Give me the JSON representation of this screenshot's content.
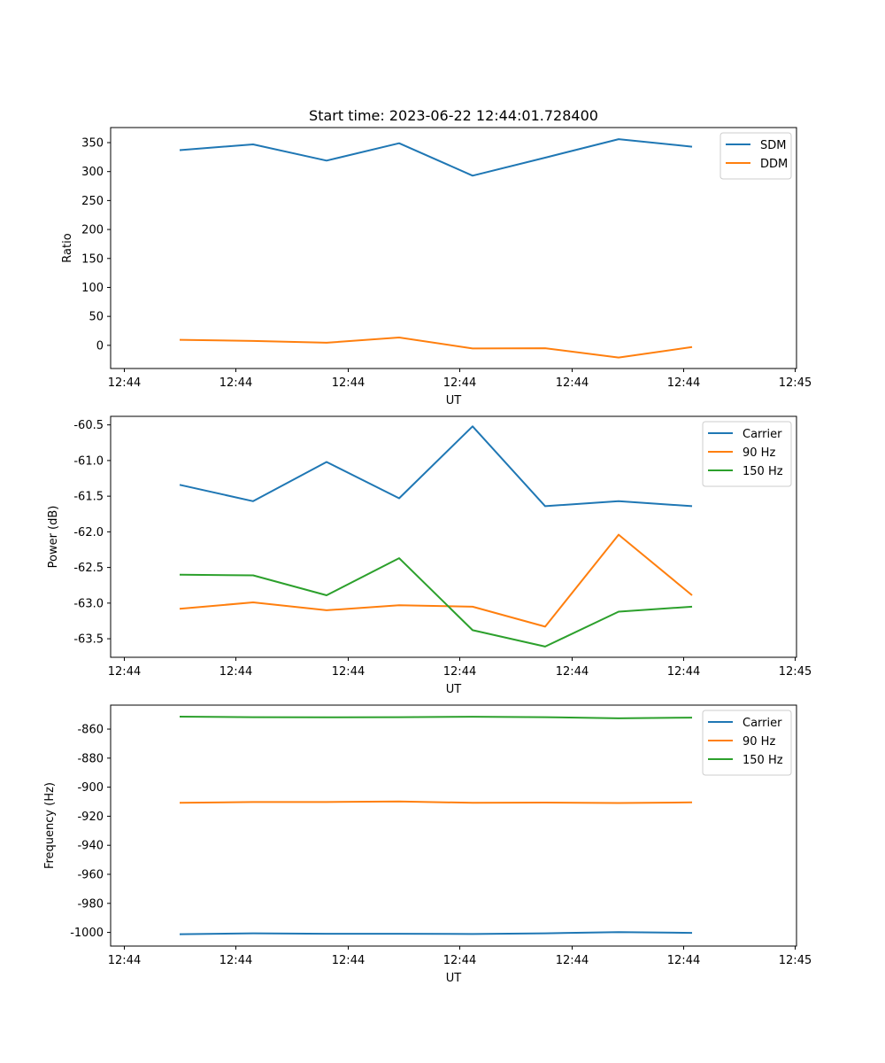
{
  "title": "Start time: 2023-06-22 12:44:01.728400",
  "chart_data": [
    {
      "type": "line",
      "xlabel": "UT",
      "ylabel": "Ratio",
      "x_ticks": [
        "12:44",
        "12:44",
        "12:44",
        "12:44",
        "12:44",
        "12:44",
        "12:45"
      ],
      "y_ticks": [
        "350",
        "300",
        "250",
        "200",
        "150",
        "100",
        "50",
        "0"
      ],
      "ylim": [
        -40,
        376
      ],
      "legend_position": "top-right",
      "series": [
        {
          "name": "SDM",
          "color": "#1f77b4",
          "values": [
            337,
            347,
            319,
            349,
            293,
            324,
            356,
            343
          ]
        },
        {
          "name": "DDM",
          "color": "#ff7f0e",
          "values": [
            9.5,
            7.5,
            4.5,
            13.5,
            -5.5,
            -5,
            -21,
            -3
          ]
        }
      ]
    },
    {
      "type": "line",
      "xlabel": "UT",
      "ylabel": "Power (dB)",
      "x_ticks": [
        "12:44",
        "12:44",
        "12:44",
        "12:44",
        "12:44",
        "12:44",
        "12:45"
      ],
      "y_ticks": [
        "-60.5",
        "-61.0",
        "-61.5",
        "-62.0",
        "-62.5",
        "-63.0",
        "-63.5"
      ],
      "ylim": [
        -63.76,
        -60.38
      ],
      "legend_position": "top-right",
      "series": [
        {
          "name": "Carrier",
          "color": "#1f77b4",
          "values": [
            -61.34,
            -61.57,
            -61.02,
            -61.53,
            -60.52,
            -61.64,
            -61.57,
            -61.64
          ]
        },
        {
          "name": "90 Hz",
          "color": "#ff7f0e",
          "values": [
            -63.08,
            -62.99,
            -63.1,
            -63.03,
            -63.05,
            -63.33,
            -62.04,
            -62.89
          ]
        },
        {
          "name": "150 Hz",
          "color": "#2ca02c",
          "values": [
            -62.6,
            -62.61,
            -62.89,
            -62.37,
            -63.38,
            -63.61,
            -63.12,
            -63.05
          ]
        }
      ]
    },
    {
      "type": "line",
      "xlabel": "UT",
      "ylabel": "Frequency (Hz)",
      "x_ticks": [
        "12:44",
        "12:44",
        "12:44",
        "12:44",
        "12:44",
        "12:44",
        "12:45"
      ],
      "y_ticks": [
        "-860",
        "-880",
        "-900",
        "-920",
        "-940",
        "-960",
        "-980",
        "-1000"
      ],
      "ylim": [
        -1009.4,
        -843.5
      ],
      "legend_position": "top-right",
      "series": [
        {
          "name": "Carrier",
          "color": "#1f77b4",
          "values": [
            -1001.2,
            -1000.6,
            -1000.9,
            -1000.9,
            -1001.1,
            -1000.6,
            -999.8,
            -1000.3
          ]
        },
        {
          "name": "90 Hz",
          "color": "#ff7f0e",
          "values": [
            -910.7,
            -910.2,
            -910.2,
            -909.8,
            -910.8,
            -910.6,
            -910.9,
            -910.5
          ]
        },
        {
          "name": "150 Hz",
          "color": "#2ca02c",
          "values": [
            -851.4,
            -851.8,
            -851.9,
            -851.8,
            -851.5,
            -851.8,
            -852.6,
            -852.1
          ]
        }
      ]
    }
  ]
}
